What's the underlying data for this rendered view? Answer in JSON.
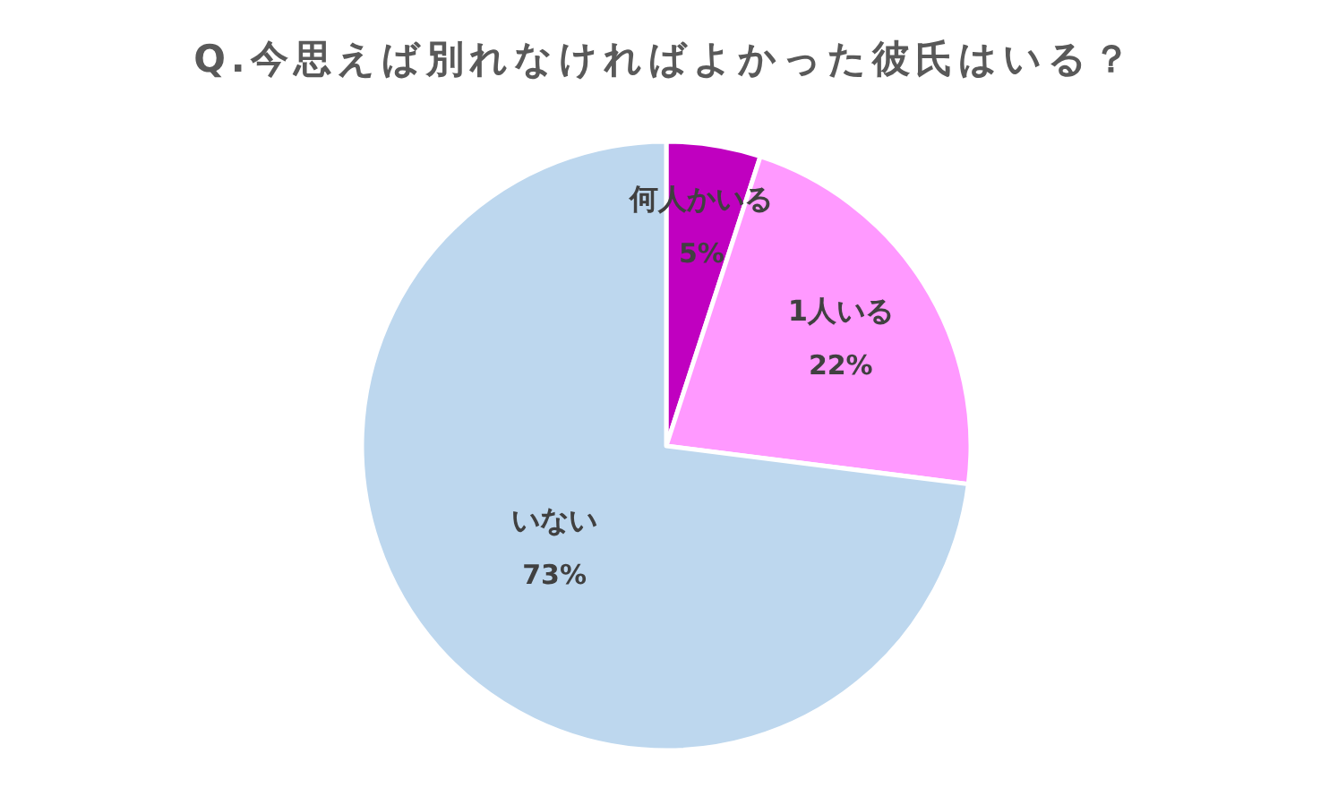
{
  "chart_data": {
    "type": "pie",
    "title": "Q.今思えば別れなければよかった彼氏はいる？",
    "categories": [
      "何人かいる",
      "1人いる",
      "いない"
    ],
    "values": [
      5,
      22,
      73
    ],
    "value_labels": [
      "5%",
      "22%",
      "73%"
    ],
    "colors": [
      "#c000c0",
      "#ff99ff",
      "#bdd7ee"
    ],
    "legend": false
  }
}
